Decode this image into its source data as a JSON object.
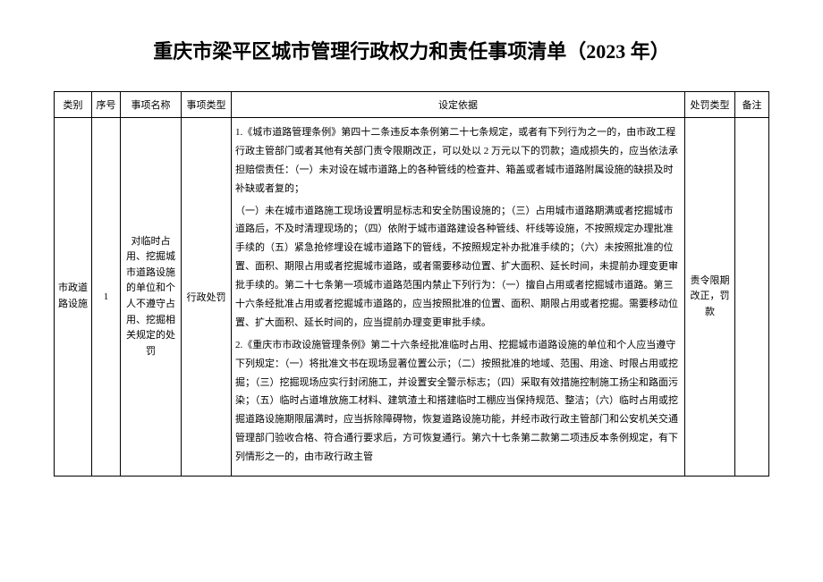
{
  "title": "重庆市梁平区城市管理行政权力和责任事项清单（2023 年）",
  "headers": {
    "category": "类别",
    "seq": "序号",
    "itemName": "事项名称",
    "itemType": "事项类型",
    "basis": "设定依据",
    "penaltyType": "处罚类型",
    "remark": "备注"
  },
  "row": {
    "category": "市政道路设施",
    "seq": "1",
    "itemName": "对临时占用、挖掘城市道路设施的单位和个人不遵守占用、挖掘相关规定的处罚",
    "itemType": "行政处罚",
    "basisP1": "1.《城市道路管理条例》第四十二条违反本条例第二十七条规定，或者有下列行为之一的，由市政工程行政主管部门或者其他有关部门责令限期改正，可以处以 2 万元以下的罚款；造成损失的，应当依法承担赔偿责任：（一）未对设在城市道路上的各种管线的检查井、箱盖或者城市道路附属设施的缺损及时补缺或者复的；",
    "basisP2": "（一）未在城市道路施工现场设置明显标志和安全防围设施的；（三）占用城市道路期满或者挖掘城市道路后，不及时清理现场的；（四）依附于城市道路建设各种管线、杆线等设施，不按照规定办理批准手续的（五）紧急抢修埋设在城市道路下的管线，不按照规定补办批准手续的；（六）未按照批准的位置、面积、期限占用或者挖掘城市道路，或者需要移动位置、扩大面积、延长时间，未提前办理变更审批手续的。第二十七条第一项城市道路范围内禁止下列行为：（一）擅自占用或者挖掘城市道路。第三十六条经批准占用或者挖掘城市道路的，应当按照批准的位置、面积、期限占用或者挖掘。需要移动位置、扩大面积、延长时间的，应当提前办理变更审批手续。",
    "basisP3": "2.《重庆市市政设施管理条例》第二十六条经批准临时占用、挖掘城市道路设施的单位和个人应当遵守下列规定：（一）将批准文书在现场显著位置公示；（二）按照批准的地域、范围、用途、时限占用或挖掘；（三）挖掘现场应实行封闭施工，并设置安全警示标志；（四）采取有效措施控制施工扬尘和路面污染；（五）临时占道堆放施工材料、建筑渣土和搭建临时工棚应当保持规范、整洁；（六）临时占用或挖掘道路设施期限届满时，应当拆除障碍物，恢复道路设施功能，并经市政行政主管部门和公安机关交通管理部门验收合格、符合通行要求后，方可恢复通行。第六十七条第二款第二项违反本条例规定，有下列情形之一的，由市政行政主管",
    "penaltyType": "责令限期改正，罚款",
    "remark": ""
  },
  "style": {
    "titleFontSize": 22,
    "cellFontSize": 11,
    "borderColor": "#000000",
    "bgColor": "#ffffff",
    "textColor": "#000000"
  }
}
